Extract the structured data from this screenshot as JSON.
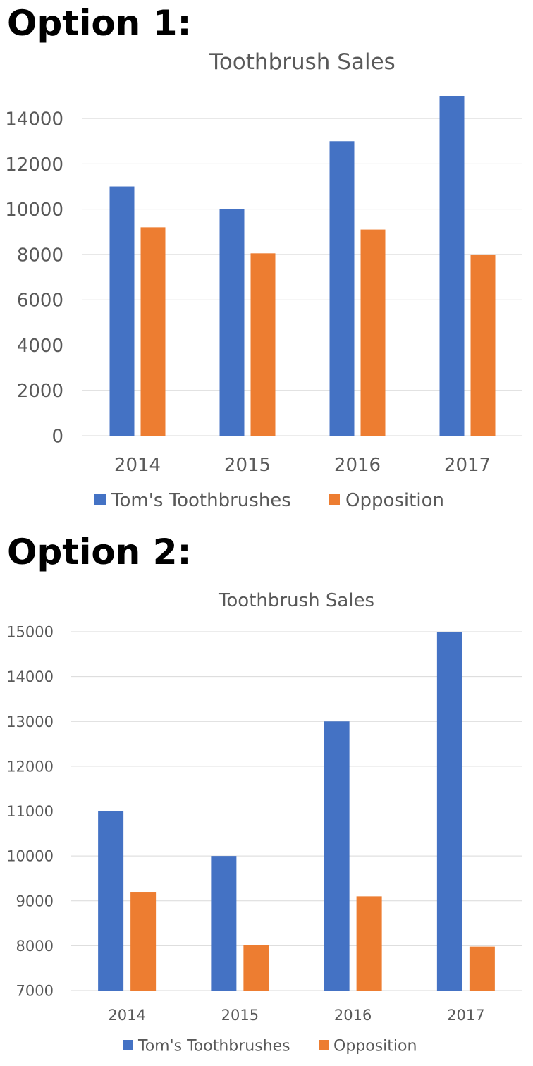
{
  "headings": [
    "Option 1:",
    "Option 2:"
  ],
  "colors": {
    "series1": "#4472C4",
    "series2": "#ED7D31",
    "grid": "#D9D9D9",
    "text": "#595959"
  },
  "chart_data": [
    {
      "type": "bar",
      "title": "Toothbrush Sales",
      "categories": [
        "2014",
        "2015",
        "2016",
        "2017"
      ],
      "series": [
        {
          "name": "Tom's Toothbrushes",
          "values": [
            11000,
            10000,
            13000,
            15000
          ]
        },
        {
          "name": "Opposition",
          "values": [
            9200,
            8050,
            9100,
            8000
          ]
        }
      ],
      "ylim": [
        0,
        15000
      ],
      "yticks": [
        0,
        2000,
        4000,
        6000,
        8000,
        10000,
        12000,
        14000
      ],
      "grid": true,
      "legend": "bottom"
    },
    {
      "type": "bar",
      "title": "Toothbrush Sales",
      "categories": [
        "2014",
        "2015",
        "2016",
        "2017"
      ],
      "series": [
        {
          "name": "Tom's Toothbrushes",
          "values": [
            11000,
            10000,
            13000,
            15000
          ]
        },
        {
          "name": "Opposition",
          "values": [
            9200,
            8020,
            9100,
            7980
          ]
        }
      ],
      "ylim": [
        7000,
        15000
      ],
      "yticks": [
        7000,
        8000,
        9000,
        10000,
        11000,
        12000,
        13000,
        14000,
        15000
      ],
      "grid": true,
      "legend": "bottom"
    }
  ]
}
